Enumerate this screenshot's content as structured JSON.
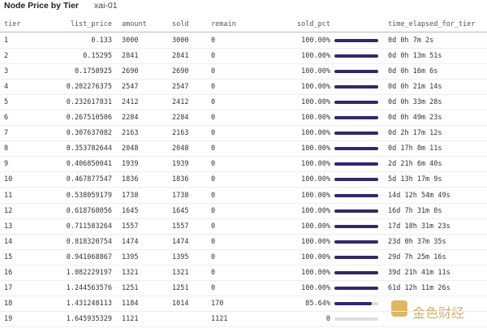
{
  "header": {
    "title": "Node Price by Tier",
    "subtitle": "xai-01"
  },
  "table": {
    "columns": [
      "tier",
      "list_price",
      "amount",
      "sold",
      "remain",
      "sold_pct",
      "time_elapsed_for_tier"
    ],
    "rows": [
      [
        "1",
        "0.133",
        "3000",
        "3000",
        "0",
        {
          "value": 100,
          "label": "100.00%"
        },
        "0d 0h 7m 2s"
      ],
      [
        "2",
        "0.15295",
        "2841",
        "2841",
        "0",
        {
          "value": 100,
          "label": "100.00%"
        },
        "0d 0h 13m 51s"
      ],
      [
        "3",
        "0.1758925",
        "2690",
        "2690",
        "0",
        {
          "value": 100,
          "label": "100.00%"
        },
        "0d 0h 16m 6s"
      ],
      [
        "4",
        "0.202276375",
        "2547",
        "2547",
        "0",
        {
          "value": 100,
          "label": "100.00%"
        },
        "0d 0h 21m 14s"
      ],
      [
        "5",
        "0.232617831",
        "2412",
        "2412",
        "0",
        {
          "value": 100,
          "label": "100.00%"
        },
        "0d 0h 33m 28s"
      ],
      [
        "6",
        "0.267510506",
        "2284",
        "2284",
        "0",
        {
          "value": 100,
          "label": "100.00%"
        },
        "0d 0h 49m 23s"
      ],
      [
        "7",
        "0.307637082",
        "2163",
        "2163",
        "0",
        {
          "value": 100,
          "label": "100.00%"
        },
        "0d 2h 17m 12s"
      ],
      [
        "8",
        "0.353782644",
        "2048",
        "2048",
        "0",
        {
          "value": 100,
          "label": "100.00%"
        },
        "0d 17h 8m 11s"
      ],
      [
        "9",
        "0.406850041",
        "1939",
        "1939",
        "0",
        {
          "value": 100,
          "label": "100.00%"
        },
        "2d 21h 6m 40s"
      ],
      [
        "10",
        "0.467877547",
        "1836",
        "1836",
        "0",
        {
          "value": 100,
          "label": "100.00%"
        },
        "5d 13h 17m 9s"
      ],
      [
        "11",
        "0.538059179",
        "1738",
        "1738",
        "0",
        {
          "value": 100,
          "label": "100.00%"
        },
        "14d 12h 54m 49s"
      ],
      [
        "12",
        "0.618768056",
        "1645",
        "1645",
        "0",
        {
          "value": 100,
          "label": "100.00%"
        },
        "16d 7h 31m 0s"
      ],
      [
        "13",
        "0.711583264",
        "1557",
        "1557",
        "0",
        {
          "value": 100,
          "label": "100.00%"
        },
        "17d 18h 31m 23s"
      ],
      [
        "14",
        "0.818320754",
        "1474",
        "1474",
        "0",
        {
          "value": 100,
          "label": "100.00%"
        },
        "23d 0h 37m 35s"
      ],
      [
        "15",
        "0.941068867",
        "1395",
        "1395",
        "0",
        {
          "value": 100,
          "label": "100.00%"
        },
        "29d 7h 25m 16s"
      ],
      [
        "16",
        "1.082229197",
        "1321",
        "1321",
        "0",
        {
          "value": 100,
          "label": "100.00%"
        },
        "39d 21h 41m 11s"
      ],
      [
        "17",
        "1.244563576",
        "1251",
        "1251",
        "0",
        {
          "value": 100,
          "label": "100.00%"
        },
        "61d 12h 11m 26s"
      ],
      [
        "18",
        "1.431248113",
        "1184",
        "1014",
        "170",
        {
          "value": 85.64,
          "label": "85.64%"
        },
        null
      ],
      [
        "19",
        "1.645935329",
        "1121",
        null,
        "1121",
        {
          "value": 0,
          "label": "0"
        },
        null
      ]
    ]
  },
  "watermark": "金色财经"
}
